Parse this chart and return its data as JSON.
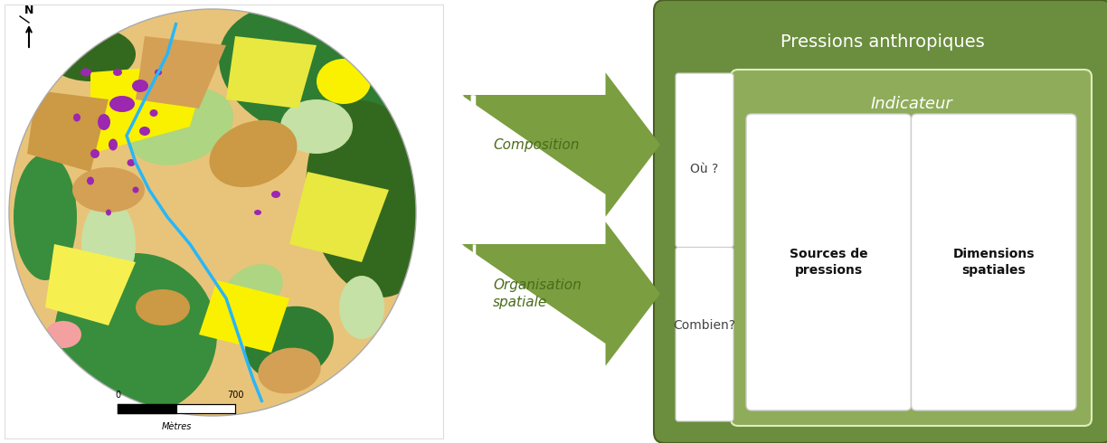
{
  "fig_width": 12.24,
  "fig_height": 4.9,
  "bg_color": "#ffffff",
  "arrow1_label": "Composition",
  "arrow2_label": "Organisation\nspatiale",
  "outer_box_color": "#6b8e3e",
  "outer_box_title": "Pressions anthropiques",
  "outer_box_title_color": "#ffffff",
  "inner_box_color": "#8fac5a",
  "inner_box_title": "Indicateur",
  "inner_box_title_color": "#ffffff",
  "white_box1_label": "Où ?",
  "white_box2_label": "Combien?",
  "white_label_color": "#444444",
  "sources_label": "Sources de\npressions",
  "dimensions_label": "Dimensions\nspatiales",
  "sources_dim_color": "#111111",
  "arrow_color": "#7a9e40",
  "arrow_label_color": "#5a7a28",
  "double_line_color": "#a0b870",
  "scale_label": "Mètres",
  "north_label": "N"
}
